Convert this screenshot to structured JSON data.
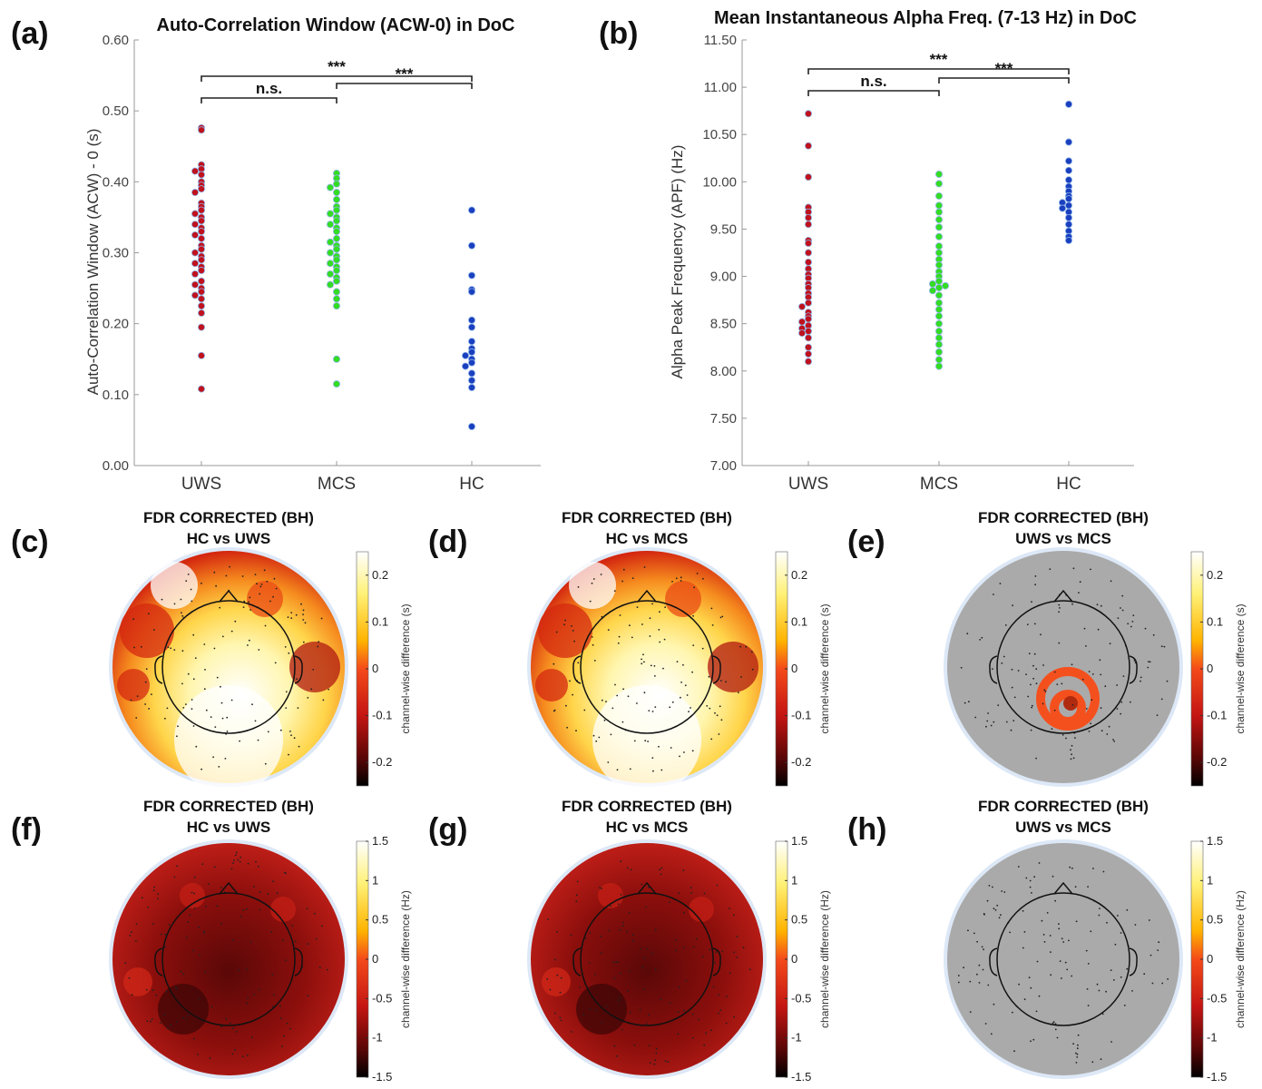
{
  "chart_data": [
    {
      "panel": "(a)",
      "type": "scatter",
      "title": "Auto-Correlation Window (ACW-0) in DoC",
      "ylabel": "Auto-Correlation Window (ACW) - 0 (s)",
      "categories": [
        "UWS",
        "MCS",
        "HC"
      ],
      "ylim": [
        0,
        0.6
      ],
      "yticks": [
        "0.00",
        "0.10",
        "0.20",
        "0.30",
        "0.40",
        "0.50",
        "0.60"
      ],
      "colors": [
        "#c0111c",
        "#33dd22",
        "#1a3fbf"
      ],
      "series": [
        {
          "category": "UWS",
          "values": [
            0.476,
            0.473,
            0.424,
            0.418,
            0.415,
            0.41,
            0.4,
            0.395,
            0.39,
            0.385,
            0.37,
            0.365,
            0.36,
            0.355,
            0.35,
            0.345,
            0.34,
            0.335,
            0.33,
            0.325,
            0.32,
            0.31,
            0.305,
            0.3,
            0.295,
            0.29,
            0.285,
            0.28,
            0.275,
            0.27,
            0.26,
            0.255,
            0.25,
            0.245,
            0.24,
            0.235,
            0.225,
            0.215,
            0.195,
            0.155,
            0.108
          ]
        },
        {
          "category": "MCS",
          "values": [
            0.412,
            0.405,
            0.397,
            0.392,
            0.385,
            0.375,
            0.365,
            0.36,
            0.355,
            0.35,
            0.345,
            0.34,
            0.335,
            0.33,
            0.32,
            0.315,
            0.31,
            0.305,
            0.3,
            0.295,
            0.29,
            0.285,
            0.28,
            0.275,
            0.27,
            0.265,
            0.26,
            0.255,
            0.245,
            0.235,
            0.225,
            0.15,
            0.115
          ]
        },
        {
          "category": "HC",
          "values": [
            0.36,
            0.31,
            0.268,
            0.248,
            0.245,
            0.205,
            0.195,
            0.175,
            0.165,
            0.16,
            0.155,
            0.15,
            0.145,
            0.14,
            0.13,
            0.12,
            0.11,
            0.055
          ]
        }
      ],
      "comparisons": [
        {
          "from": "UWS",
          "to": "HC",
          "label": "***"
        },
        {
          "from": "UWS",
          "to": "MCS",
          "label": "n.s."
        },
        {
          "from": "MCS",
          "to": "HC",
          "label": "***"
        }
      ]
    },
    {
      "panel": "(b)",
      "type": "scatter",
      "title": "Mean Instantaneous Alpha Freq. (7-13 Hz) in DoC",
      "ylabel": "Alpha Peak Frequency (APF) (Hz)",
      "categories": [
        "UWS",
        "MCS",
        "HC"
      ],
      "ylim": [
        7,
        11.5
      ],
      "yticks": [
        "7.00",
        "7.50",
        "8.00",
        "8.50",
        "9.00",
        "9.50",
        "10.00",
        "10.50",
        "11.00",
        "11.50"
      ],
      "colors": [
        "#c0111c",
        "#33dd22",
        "#1a3fbf"
      ],
      "series": [
        {
          "category": "UWS",
          "values": [
            10.72,
            10.38,
            10.05,
            9.73,
            9.68,
            9.62,
            9.55,
            9.38,
            9.35,
            9.25,
            9.15,
            9.08,
            9.02,
            8.98,
            8.92,
            8.88,
            8.82,
            8.78,
            8.72,
            8.68,
            8.62,
            8.58,
            8.55,
            8.52,
            8.48,
            8.45,
            8.42,
            8.4,
            8.35,
            8.25,
            8.18,
            8.1
          ]
        },
        {
          "category": "MCS",
          "values": [
            10.08,
            9.98,
            9.85,
            9.75,
            9.68,
            9.6,
            9.52,
            9.42,
            9.32,
            9.25,
            9.18,
            9.12,
            9.05,
            9.0,
            8.95,
            8.92,
            8.9,
            8.88,
            8.85,
            8.8,
            8.72,
            8.65,
            8.58,
            8.5,
            8.42,
            8.35,
            8.28,
            8.2,
            8.12,
            8.05
          ]
        },
        {
          "category": "HC",
          "values": [
            10.82,
            10.42,
            10.22,
            10.12,
            10.02,
            9.95,
            9.9,
            9.85,
            9.82,
            9.78,
            9.75,
            9.72,
            9.68,
            9.62,
            9.55,
            9.48,
            9.42,
            9.38
          ]
        }
      ],
      "comparisons": [
        {
          "from": "UWS",
          "to": "HC",
          "label": "***"
        },
        {
          "from": "UWS",
          "to": "MCS",
          "label": "n.s."
        },
        {
          "from": "MCS",
          "to": "HC",
          "label": "***"
        }
      ]
    },
    {
      "panel": "(c)",
      "type": "heatmap",
      "title_line1": "FDR CORRECTED (BH)",
      "title_line2": "HC vs UWS",
      "colorbar_label": "channel-wise difference (s)",
      "colorbar_ticks": [
        "0.2",
        "0.1",
        "0",
        "-0.1",
        "-0.2"
      ],
      "colorbar_range": [
        -0.25,
        0.25
      ]
    },
    {
      "panel": "(d)",
      "type": "heatmap",
      "title_line1": "FDR CORRECTED (BH)",
      "title_line2": "HC vs MCS",
      "colorbar_label": "channel-wise difference (s)",
      "colorbar_ticks": [
        "0.2",
        "0.1",
        "0",
        "-0.1",
        "-0.2"
      ],
      "colorbar_range": [
        -0.25,
        0.25
      ]
    },
    {
      "panel": "(e)",
      "type": "heatmap",
      "title_line1": "FDR CORRECTED (BH)",
      "title_line2": "UWS vs MCS",
      "colorbar_label": "channel-wise difference (s)",
      "colorbar_ticks": [
        "0.2",
        "0.1",
        "0",
        "-0.1",
        "-0.2"
      ],
      "colorbar_range": [
        -0.25,
        0.25
      ]
    },
    {
      "panel": "(f)",
      "type": "heatmap",
      "title_line1": "FDR CORRECTED (BH)",
      "title_line2": "HC vs UWS",
      "colorbar_label": "channel-wise difference (Hz)",
      "colorbar_ticks": [
        "1.5",
        "1",
        "0.5",
        "0",
        "-0.5",
        "-1",
        "-1.5"
      ],
      "colorbar_range": [
        -1.5,
        1.5
      ]
    },
    {
      "panel": "(g)",
      "type": "heatmap",
      "title_line1": "FDR CORRECTED (BH)",
      "title_line2": "HC vs MCS",
      "colorbar_label": "channel-wise difference (Hz)",
      "colorbar_ticks": [
        "1.5",
        "1",
        "0.5",
        "0",
        "-0.5",
        "-1",
        "-1.5"
      ],
      "colorbar_range": [
        -1.5,
        1.5
      ]
    },
    {
      "panel": "(h)",
      "type": "heatmap",
      "title_line1": "FDR CORRECTED (BH)",
      "title_line2": "UWS vs MCS",
      "colorbar_label": "channel-wise difference (Hz)",
      "colorbar_ticks": [
        "1.5",
        "1",
        "0.5",
        "0",
        "-0.5",
        "-1",
        "-1.5"
      ],
      "colorbar_range": [
        -1.5,
        1.5
      ]
    }
  ]
}
